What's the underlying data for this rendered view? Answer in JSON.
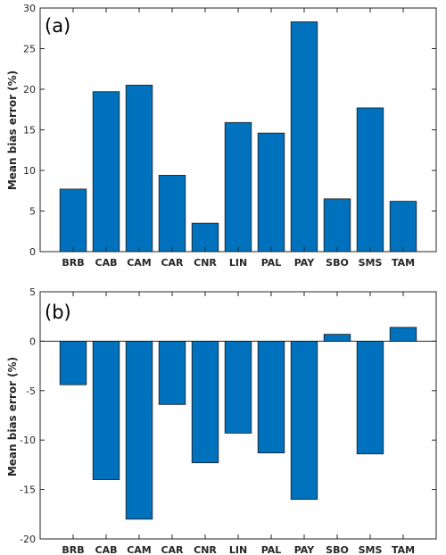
{
  "colors": {
    "bar": "#0072bd",
    "bar_edge": "#1a1a1a",
    "axis": "#262626",
    "zero_line": "#262626"
  },
  "chart_data": [
    {
      "type": "bar",
      "panel_label": "(a)",
      "categories": [
        "BRB",
        "CAB",
        "CAM",
        "CAR",
        "CNR",
        "LIN",
        "PAL",
        "PAY",
        "SBO",
        "SMS",
        "TAM"
      ],
      "values": [
        7.7,
        19.7,
        20.5,
        9.4,
        3.5,
        15.9,
        14.6,
        28.3,
        6.5,
        17.7,
        6.2
      ],
      "xlabel": "",
      "ylabel": "Mean bias error (%)",
      "ylim": [
        0,
        30
      ],
      "yticks": [
        0,
        5,
        10,
        15,
        20,
        25,
        30
      ],
      "grid": false,
      "legend": "none"
    },
    {
      "type": "bar",
      "panel_label": "(b)",
      "categories": [
        "BRB",
        "CAB",
        "CAM",
        "CAR",
        "CNR",
        "LIN",
        "PAL",
        "PAY",
        "SBO",
        "SMS",
        "TAM"
      ],
      "values": [
        -4.4,
        -14.0,
        -18.0,
        -6.4,
        -12.3,
        -9.3,
        -11.3,
        -16.0,
        0.7,
        -11.4,
        1.4
      ],
      "xlabel": "",
      "ylabel": "Mean bias error (%)",
      "ylim": [
        -20,
        5
      ],
      "yticks": [
        -20,
        -15,
        -10,
        -5,
        0,
        5
      ],
      "grid": false,
      "legend": "none"
    }
  ]
}
